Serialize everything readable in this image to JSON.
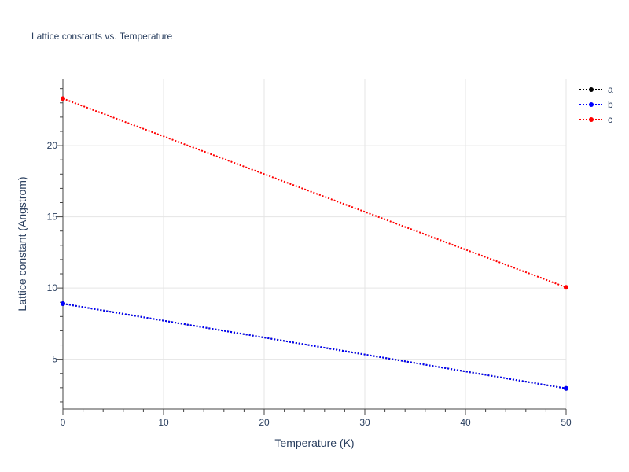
{
  "chart_data": {
    "type": "line",
    "title": "Lattice constants vs. Temperature",
    "xlabel": "Temperature (K)",
    "ylabel": "Lattice constant (Angstrom)",
    "xlim": [
      0,
      50
    ],
    "ylim": [
      1.5,
      24.7
    ],
    "x_ticks": [
      0,
      10,
      20,
      30,
      40,
      50
    ],
    "y_ticks": [
      5,
      10,
      15,
      20
    ],
    "grid": true,
    "legend_position": "top-right",
    "series": [
      {
        "name": "a",
        "color": "#000000",
        "line_style": "dotted",
        "x": [
          0,
          50
        ],
        "y": [
          8.9,
          2.95
        ]
      },
      {
        "name": "b",
        "color": "#0000ff",
        "line_style": "dotted",
        "x": [
          0,
          50
        ],
        "y": [
          8.9,
          2.95
        ]
      },
      {
        "name": "c",
        "color": "#ff0000",
        "line_style": "dotted",
        "x": [
          0,
          50
        ],
        "y": [
          23.3,
          10.05
        ]
      }
    ]
  }
}
